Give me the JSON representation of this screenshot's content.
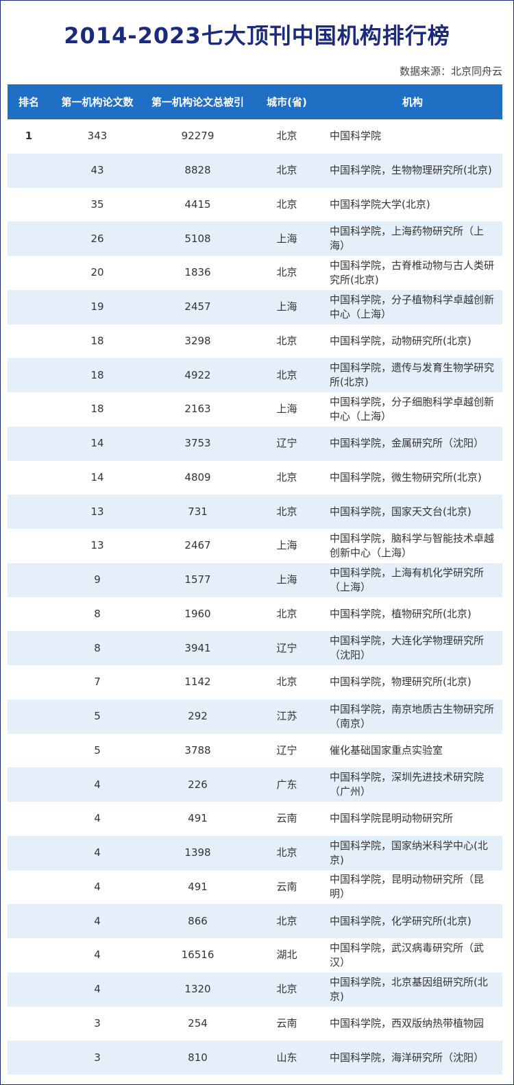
{
  "header": {
    "title": "2014-2023七大顶刊中国机构排行榜",
    "source": "数据来源：北京同舟云"
  },
  "table": {
    "columns": [
      "排名",
      "第一机构论文数",
      "第一机构论文总被引",
      "城市(省)",
      "机构"
    ],
    "rows": [
      [
        1,
        343,
        92279,
        "北京",
        "中国科学院"
      ],
      [
        null,
        43,
        8828,
        "北京",
        "中国科学院，生物物理研究所(北京)"
      ],
      [
        null,
        35,
        4415,
        "北京",
        "中国科学院大学(北京)"
      ],
      [
        null,
        26,
        5108,
        "上海",
        "中国科学院，上海药物研究所（上海）"
      ],
      [
        null,
        20,
        1836,
        "北京",
        "中国科学院，古脊椎动物与古人类研究所(北京)"
      ],
      [
        null,
        19,
        2457,
        "上海",
        "中国科学院，分子植物科学卓越创新中心（上海）"
      ],
      [
        null,
        18,
        3298,
        "北京",
        "中国科学院，动物研究所(北京)"
      ],
      [
        null,
        18,
        4922,
        "北京",
        "中国科学院，遗传与发育生物学研究所(北京)"
      ],
      [
        null,
        18,
        2163,
        "上海",
        "中国科学院，分子细胞科学卓越创新中心（上海）"
      ],
      [
        null,
        14,
        3753,
        "辽宁",
        "中国科学院，金属研究所（沈阳）"
      ],
      [
        null,
        14,
        4809,
        "北京",
        "中国科学院，微生物研究所(北京)"
      ],
      [
        null,
        13,
        731,
        "北京",
        "中国科学院，国家天文台(北京)"
      ],
      [
        null,
        13,
        2467,
        "上海",
        "中国科学院，脑科学与智能技术卓越创新中心（上海）"
      ],
      [
        null,
        9,
        1577,
        "上海",
        "中国科学院，上海有机化学研究所（上海）"
      ],
      [
        null,
        8,
        1960,
        "北京",
        "中国科学院，植物研究所(北京)"
      ],
      [
        null,
        8,
        3941,
        "辽宁",
        "中国科学院，大连化学物理研究所（沈阳）"
      ],
      [
        null,
        7,
        1142,
        "北京",
        "中国科学院，物理研究所(北京)"
      ],
      [
        null,
        5,
        292,
        "江苏",
        "中国科学院，南京地质古生物研究所（南京）"
      ],
      [
        null,
        5,
        3788,
        "辽宁",
        "催化基础国家重点实验室"
      ],
      [
        null,
        4,
        226,
        "广东",
        "中国科学院，深圳先进技术研究院（广州）"
      ],
      [
        null,
        4,
        491,
        "云南",
        "中国科学院昆明动物研究所"
      ],
      [
        null,
        4,
        1398,
        "北京",
        "中国科学院，国家纳米科学中心(北京)"
      ],
      [
        null,
        4,
        491,
        "云南",
        "中国科学院，昆明动物研究所（昆明）"
      ],
      [
        null,
        4,
        866,
        "北京",
        "中国科学院，化学研究所(北京)"
      ],
      [
        null,
        4,
        16516,
        "湖北",
        "中国科学院，武汉病毒研究所（武汉）"
      ],
      [
        null,
        4,
        1320,
        "北京",
        "中国科学院，北京基因组研究所(北京)"
      ],
      [
        null,
        3,
        254,
        "云南",
        "中国科学院，西双版纳热带植物园"
      ],
      [
        null,
        3,
        810,
        "山东",
        "中国科学院，海洋研究所（沈阳）"
      ]
    ]
  }
}
